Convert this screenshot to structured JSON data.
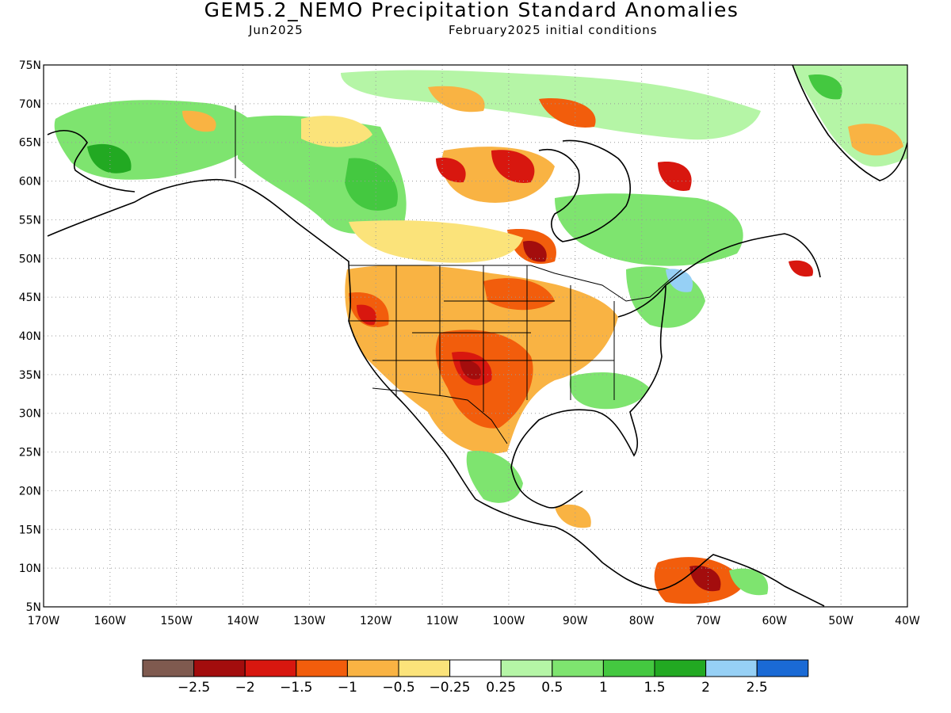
{
  "title": "GEM5.2_NEMO Precipitation Standard Anomalies",
  "subtitle_left": "Jun2025",
  "subtitle_right": "February2025 initial conditions",
  "map": {
    "lat_range": [
      5,
      75
    ],
    "lon_range": [
      -170,
      -40
    ],
    "lat_labels": [
      "75N",
      "70N",
      "65N",
      "60N",
      "55N",
      "50N",
      "45N",
      "40N",
      "35N",
      "30N",
      "25N",
      "20N",
      "15N",
      "10N",
      "5N"
    ],
    "lon_labels": [
      "170W",
      "160W",
      "150W",
      "140W",
      "130W",
      "120W",
      "110W",
      "100W",
      "90W",
      "80W",
      "70W",
      "60W",
      "50W",
      "40W"
    ],
    "grid": true
  },
  "colorbar": {
    "colors": [
      "#7f5a4f",
      "#a30d0d",
      "#d8170f",
      "#f25d0c",
      "#f9b343",
      "#fbe37a",
      "#ffffff",
      "#b5f5a6",
      "#7ee46f",
      "#44c840",
      "#22a922",
      "#96d0f5",
      "#1a6ad5"
    ],
    "labels": [
      "−2.5",
      "−2",
      "−1.5",
      "−1",
      "−0.5",
      "−0.25",
      "0.25",
      "0.5",
      "1",
      "1.5",
      "2",
      "2.5"
    ]
  }
}
